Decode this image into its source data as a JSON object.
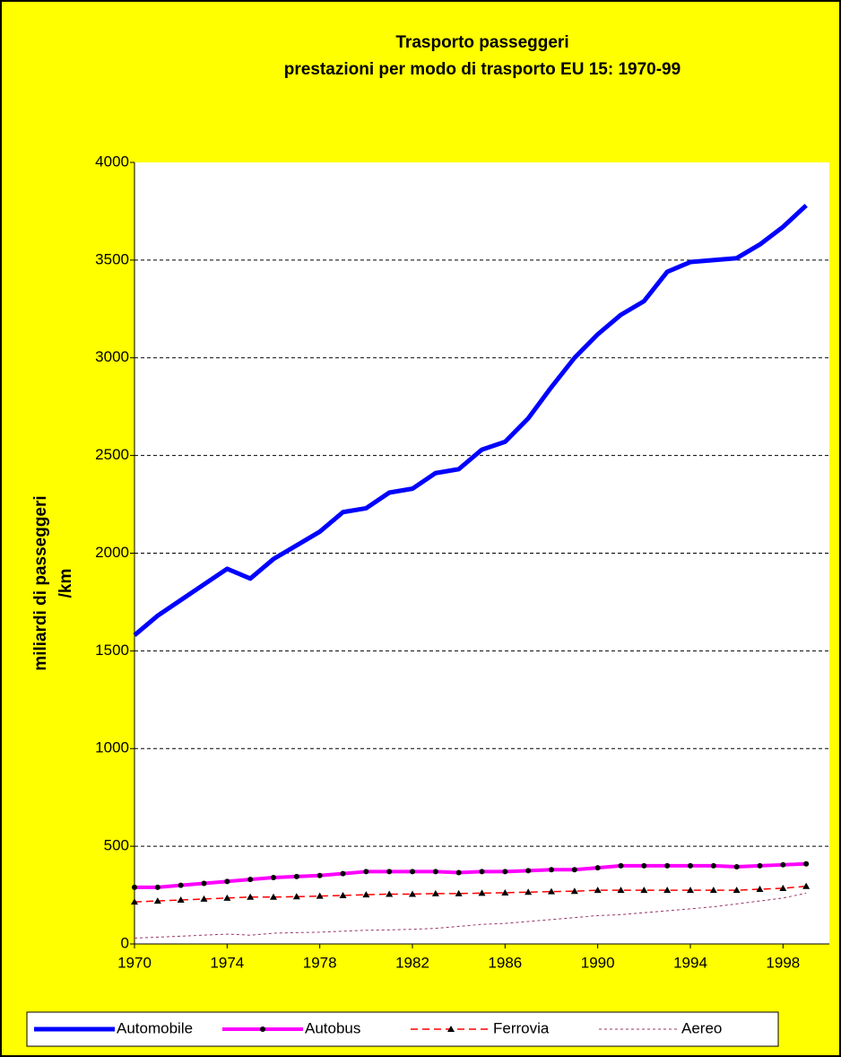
{
  "chart_data": {
    "type": "line",
    "title": [
      "Trasporto passeggeri",
      "prestazioni per modo di trasporto EU 15: 1970-99"
    ],
    "y_label": [
      "miliardi di passeggeri",
      "/km"
    ],
    "x": [
      1970,
      1971,
      1972,
      1973,
      1974,
      1975,
      1976,
      1977,
      1978,
      1979,
      1980,
      1981,
      1982,
      1983,
      1984,
      1985,
      1986,
      1987,
      1988,
      1989,
      1990,
      1991,
      1992,
      1993,
      1994,
      1995,
      1996,
      1997,
      1998,
      1999
    ],
    "xlim": [
      1970,
      2000
    ],
    "xticks": [
      1970,
      1974,
      1978,
      1982,
      1986,
      1990,
      1994,
      1998
    ],
    "ylim": [
      0,
      4000
    ],
    "yticks": [
      0,
      500,
      1000,
      1500,
      2000,
      2500,
      3000,
      3500,
      4000
    ],
    "grid": true,
    "legend": "bottom",
    "series": [
      {
        "name": "Automobile",
        "color": "#0000ff",
        "values": [
          1580,
          1680,
          1760,
          1840,
          1920,
          1870,
          1970,
          2040,
          2110,
          2210,
          2230,
          2310,
          2330,
          2410,
          2430,
          2530,
          2570,
          2690,
          2850,
          3000,
          3120,
          3220,
          3290,
          3440,
          3490,
          3500,
          3510,
          3580,
          3670,
          3780
        ]
      },
      {
        "name": "Autobus",
        "color": "#ff00ff",
        "values": [
          290,
          290,
          300,
          310,
          320,
          330,
          340,
          345,
          350,
          360,
          370,
          370,
          370,
          370,
          365,
          370,
          370,
          375,
          380,
          380,
          390,
          400,
          400,
          400,
          400,
          400,
          395,
          400,
          405,
          410
        ]
      },
      {
        "name": "Ferrovia",
        "color": "#ff0000",
        "values": [
          215,
          220,
          225,
          230,
          235,
          240,
          240,
          242,
          245,
          248,
          252,
          255,
          255,
          258,
          258,
          260,
          262,
          265,
          268,
          270,
          275,
          275,
          275,
          275,
          275,
          275,
          275,
          280,
          285,
          295
        ]
      },
      {
        "name": "Aereo",
        "color": "#993366",
        "values": [
          30,
          35,
          40,
          45,
          50,
          45,
          55,
          58,
          60,
          65,
          70,
          72,
          75,
          80,
          90,
          100,
          105,
          115,
          125,
          135,
          145,
          150,
          160,
          170,
          180,
          190,
          205,
          220,
          235,
          260
        ]
      }
    ]
  }
}
